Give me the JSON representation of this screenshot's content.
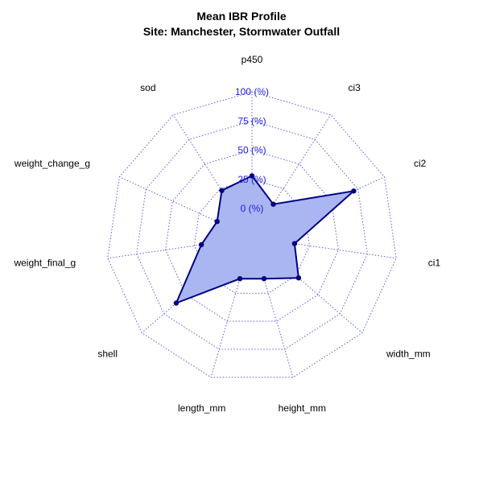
{
  "chart_data": {
    "type": "radar",
    "title": "Mean IBR Profile",
    "subtitle": "Site: Manchester, Stormwater Outfall",
    "axes": [
      "p450",
      "ci3",
      "ci2",
      "ci1",
      "width_mm",
      "height_mm",
      "length_mm",
      "shell",
      "weight_final_g",
      "weight_change_g",
      "sod"
    ],
    "rlim": [
      0,
      100
    ],
    "r_ticks": [
      0,
      25,
      50,
      75,
      100
    ],
    "r_tick_labels": [
      "0 (%)",
      "25 (%)",
      "50 (%)",
      "75 (%)",
      "100 (%)"
    ],
    "series": [
      {
        "values": [
          28,
          9,
          71,
          12,
          28,
          12,
          12,
          61,
          19,
          8,
          23
        ]
      }
    ],
    "grid": true,
    "colors": {
      "grid": "#4c4cd9",
      "tick_labels": "#1f1fe0",
      "fill": "#a9b6f2",
      "line": "#000080",
      "point": "#000080"
    }
  }
}
